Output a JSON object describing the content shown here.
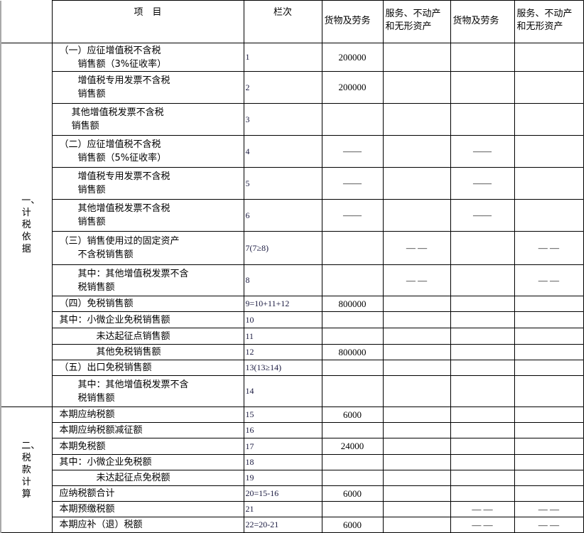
{
  "header": {
    "item": "项　目",
    "code": "栏次",
    "cols": [
      "货物及劳务",
      "服务、不动产\n和无形资产",
      "货物及劳务",
      "服务、不动产\n和无形资产"
    ]
  },
  "sections": [
    {
      "label": "一、计税依据"
    },
    {
      "label": "二、税款计算"
    }
  ],
  "rows": [
    {
      "item": [
        "（一）应征增值税不含税",
        "　　销售额（3%征收率）"
      ],
      "code": "1",
      "values": [
        "200000",
        "",
        "",
        ""
      ]
    },
    {
      "item": [
        "　　增值税专用发票不含税",
        "　　销售额"
      ],
      "code": "2",
      "values": [
        "200000",
        "",
        "",
        ""
      ]
    },
    {
      "item": [
        "　 其他增值税发票不含税",
        "　 销售额"
      ],
      "code": "3",
      "values": [
        "",
        "",
        "",
        ""
      ]
    },
    {
      "item": [
        "（二）应征增值税不含税",
        "　　销售额（5%征收率）"
      ],
      "code": "4",
      "values": [
        "——",
        "",
        "——",
        ""
      ]
    },
    {
      "item": [
        "　　增值税专用发票不含税",
        "　　销售额"
      ],
      "code": "5",
      "values": [
        "——",
        "",
        "——",
        ""
      ]
    },
    {
      "item": [
        "　　其他增值税发票不含税",
        "　　销售额"
      ],
      "code": "6",
      "values": [
        "——",
        "",
        "——",
        ""
      ]
    },
    {
      "item": [
        "（三）销售使用过的固定资产",
        "　　不含税销售额"
      ],
      "code": "7(7≥8)",
      "values": [
        "",
        "— —",
        "",
        "— —"
      ]
    },
    {
      "item": [
        "　　其中：其他增值税发票不含",
        "　　税销售额"
      ],
      "code": "8",
      "values": [
        "",
        "— —",
        "",
        "— —"
      ]
    },
    {
      "item": [
        "（四）免税销售额"
      ],
      "code": "9=10+11+12",
      "values": [
        "800000",
        "",
        "",
        ""
      ]
    },
    {
      "item": [
        "其中：小微企业免税销售额"
      ],
      "code": "10",
      "values": [
        "",
        "",
        "",
        ""
      ]
    },
    {
      "item": [
        "　　　　未达起征点销售额"
      ],
      "code": "11",
      "values": [
        "",
        "",
        "",
        ""
      ]
    },
    {
      "item": [
        "　　　　其他免税销售额"
      ],
      "code": "12",
      "values": [
        "800000",
        "",
        "",
        ""
      ]
    },
    {
      "item": [
        "（五）出口免税销售额"
      ],
      "code": "13(13≥14)",
      "values": [
        "",
        "",
        "",
        ""
      ]
    },
    {
      "item": [
        "　　其中：其他增值税发票不含",
        "　　税销售额"
      ],
      "code": "14",
      "values": [
        "",
        "",
        "",
        ""
      ]
    },
    {
      "item": [
        "本期应纳税额"
      ],
      "code": "15",
      "values": [
        "6000",
        "",
        "",
        ""
      ]
    },
    {
      "item": [
        "本期应纳税额减征额"
      ],
      "code": "16",
      "values": [
        "",
        "",
        "",
        ""
      ]
    },
    {
      "item": [
        "本期免税额"
      ],
      "code": "17",
      "values": [
        "24000",
        "",
        "",
        ""
      ]
    },
    {
      "item": [
        "其中：小微企业免税额"
      ],
      "code": "18",
      "values": [
        "",
        "",
        "",
        ""
      ]
    },
    {
      "item": [
        "　　　　未达起征点免税额"
      ],
      "code": "19",
      "values": [
        "",
        "",
        "",
        ""
      ]
    },
    {
      "item": [
        "应纳税额合计"
      ],
      "code": "20=15-16",
      "values": [
        "6000",
        "",
        "",
        ""
      ]
    },
    {
      "item": [
        "本期预缴税额"
      ],
      "code": "21",
      "values": [
        "",
        "",
        "— —",
        "— —"
      ]
    },
    {
      "item": [
        "本期应补（退）税额"
      ],
      "code": "22=20-21",
      "values": [
        "6000",
        "",
        "— —",
        "— —"
      ]
    }
  ]
}
